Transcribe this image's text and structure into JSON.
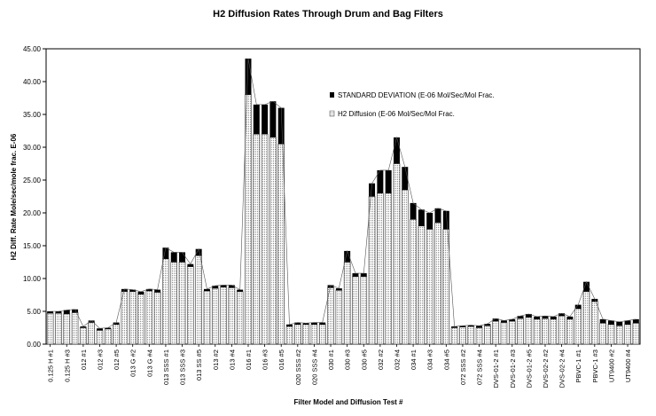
{
  "chart_data": {
    "type": "bar",
    "title": "H2 Diffusion Rates Through Drum and Bag Filters",
    "xlabel": "Filter Model and Diffusion Test #",
    "ylabel": "H2 Diff. Rate Mole/sec/mole frac. E-06",
    "ylim": [
      0,
      45
    ],
    "yticks": [
      "0.00",
      "5.00",
      "10.00",
      "15.00",
      "20.00",
      "25.00",
      "30.00",
      "35.00",
      "40.00",
      "45.00"
    ],
    "stacked": true,
    "grid": false,
    "legend_position": "upper-middle-right",
    "tick_labels": [
      "0.125 H #1",
      "0.125 H #3",
      "012 #1",
      "012 #3",
      "012 #5",
      "013 G #2",
      "013 G #4",
      "013 SSS #1",
      "013 SSS #3",
      "013 SS #5",
      "013 #2",
      "013 #4",
      "016 #1",
      "016 #3",
      "016 #5",
      "020 SSS #2",
      "020 SSS #4",
      "030 #1",
      "030 #3",
      "030 #5",
      "032 #2",
      "032 #4",
      "034 #1",
      "034 #3",
      "034 #5",
      "072 SSS #2",
      "072 SSS #4",
      "DVS-01-2 #1",
      "DVS-01-2 #3",
      "DVS-01-2 #5",
      "DVS-02-2 #2",
      "DVS-02-2 #4",
      "PBVC-1 #1",
      "PBVC-1 #3",
      "UT9400 #2",
      "UT9400 #4"
    ],
    "series": [
      {
        "name": "H2 Diffusion (E-06 Mol/Sec/Mol Frac.",
        "color": "#f2f2f2",
        "values": [
          4.7,
          4.7,
          4.6,
          4.8,
          2.5,
          3.3,
          2.1,
          2.3,
          3.0,
          8.0,
          8.0,
          7.6,
          8.1,
          7.9,
          13.0,
          12.5,
          12.5,
          11.8,
          13.5,
          8.1,
          8.5,
          8.7,
          8.6,
          8.0,
          38.0,
          32.0,
          32.0,
          31.5,
          30.5,
          2.7,
          3.0,
          3.0,
          3.0,
          3.0,
          8.6,
          8.2,
          12.5,
          10.3,
          10.3,
          22.5,
          23.0,
          23.0,
          27.5,
          23.5,
          19.0,
          18.0,
          17.5,
          18.5,
          17.5,
          2.5,
          2.6,
          2.7,
          2.5,
          2.8,
          3.5,
          3.3,
          3.5,
          3.9,
          4.1,
          3.8,
          3.9,
          3.8,
          4.3,
          3.8,
          5.4,
          8.0,
          6.5,
          3.2,
          3.0,
          2.8,
          3.0,
          3.2
        ]
      },
      {
        "name": "STANDARD DEVIATION (E-06 Mol/Sec/Mol Frac.",
        "color": "#000000",
        "values": [
          0.3,
          0.3,
          0.6,
          0.5,
          0.2,
          0.3,
          0.3,
          0.2,
          0.3,
          0.4,
          0.3,
          0.4,
          0.3,
          0.4,
          1.7,
          1.5,
          1.5,
          0.4,
          1.0,
          0.3,
          0.4,
          0.3,
          0.4,
          0.3,
          5.5,
          4.5,
          4.5,
          5.5,
          5.5,
          0.3,
          0.3,
          0.2,
          0.3,
          0.3,
          0.4,
          0.3,
          1.7,
          0.5,
          0.5,
          2.0,
          3.5,
          3.5,
          4.0,
          3.5,
          2.5,
          2.5,
          2.5,
          2.2,
          2.8,
          0.2,
          0.2,
          0.2,
          0.3,
          0.3,
          0.4,
          0.3,
          0.3,
          0.4,
          0.5,
          0.4,
          0.4,
          0.4,
          0.4,
          0.4,
          0.6,
          1.5,
          0.4,
          0.6,
          0.6,
          0.6,
          0.6,
          0.6
        ]
      }
    ]
  }
}
